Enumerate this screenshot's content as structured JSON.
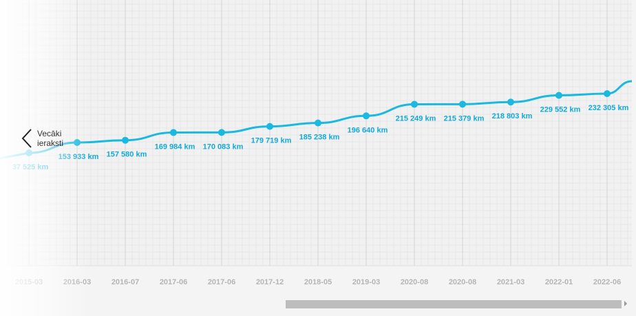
{
  "nav": {
    "older_line1": "Vecāki",
    "older_line2": "ieraksti"
  },
  "colors": {
    "line": "#1bb8e0",
    "label": "#13a9d6",
    "tick": "#b5b5b5",
    "grid": "#e3e3e3"
  },
  "chart_data": {
    "type": "line",
    "title": "",
    "xlabel": "",
    "ylabel": "",
    "unit": "km",
    "categories": [
      "2015-03",
      "2016-03",
      "2016-07",
      "2017-06",
      "2017-06",
      "2017-12",
      "2018-05",
      "2019-03",
      "2020-08",
      "2020-08",
      "2021-03",
      "2022-01",
      "2022-06"
    ],
    "values": [
      37525,
      153933,
      157580,
      169984,
      170083,
      179719,
      185238,
      196640,
      215249,
      215379,
      218803,
      229552,
      232305
    ],
    "labels": [
      "37 525 km",
      "153 933 km",
      "157 580 km",
      "169 984 km",
      "170 083 km",
      "179 719 km",
      "185 238 km",
      "196 640 km",
      "215 249 km",
      "215 379 km",
      "218 803 km",
      "229 552 km",
      "232 305 km"
    ],
    "grid": true
  }
}
